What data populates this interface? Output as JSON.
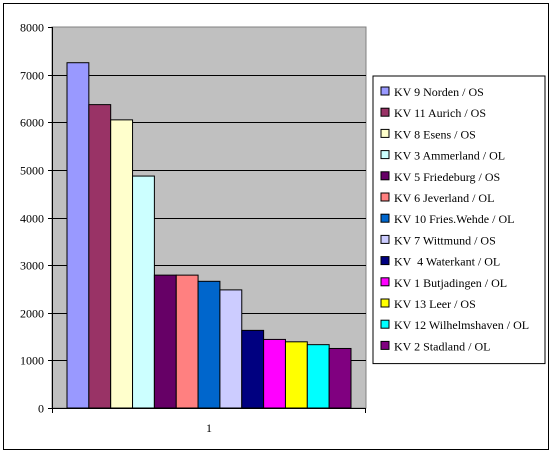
{
  "chart_data": {
    "type": "bar",
    "title": "",
    "xlabel": "",
    "ylabel": "",
    "categories": [
      "1"
    ],
    "ylim": [
      0,
      8000
    ],
    "yticks": [
      0,
      1000,
      2000,
      3000,
      4000,
      5000,
      6000,
      7000,
      8000
    ],
    "grid": true,
    "plot_background": "#c0c0c0",
    "legend_position": "right",
    "series": [
      {
        "name": "KV 9 Norden / OS",
        "value": 7250,
        "color": "#9999ff"
      },
      {
        "name": "KV 11 Aurich / OS",
        "value": 6370,
        "color": "#993366"
      },
      {
        "name": "KV 8 Esens / OS",
        "value": 6050,
        "color": "#ffffcc"
      },
      {
        "name": "KV 3 Ammerland / OL",
        "value": 4870,
        "color": "#ccffff"
      },
      {
        "name": "KV 5 Friedeburg / OS",
        "value": 2790,
        "color": "#660066"
      },
      {
        "name": "KV 6 Jeverland / OL",
        "value": 2790,
        "color": "#ff8080"
      },
      {
        "name": "KV 10 Fries.Wehde / OL",
        "value": 2660,
        "color": "#0066cc"
      },
      {
        "name": "KV 7 Wittmund / OS",
        "value": 2480,
        "color": "#ccccff"
      },
      {
        "name": "KV  4 Waterkant / OL",
        "value": 1630,
        "color": "#000080"
      },
      {
        "name": "KV 1 Butjadingen / OL",
        "value": 1440,
        "color": "#ff00ff"
      },
      {
        "name": "KV 13 Leer / OS",
        "value": 1390,
        "color": "#ffff00"
      },
      {
        "name": "KV 12 Wilhelmshaven / OL",
        "value": 1330,
        "color": "#00ffff"
      },
      {
        "name": "KV 2 Stadland / OL",
        "value": 1250,
        "color": "#800080"
      }
    ]
  }
}
